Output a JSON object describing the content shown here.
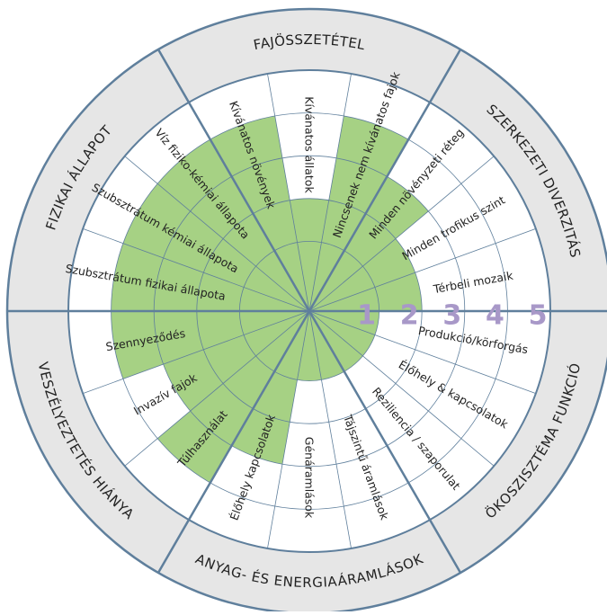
{
  "chart_data": {
    "type": "polar_bar",
    "color": "#a6d184",
    "rlim": [
      0,
      5
    ],
    "rticks": [
      1,
      2,
      3,
      4,
      5
    ],
    "groups": [
      {
        "name": "FAJÖSSZETÉTEL",
        "categories": [
          "Kívánatos növények",
          "Kívánatos állatok",
          "Nincsenek nem kívánatos fajok"
        ],
        "values": [
          4,
          2,
          4
        ]
      },
      {
        "name": "SZERKEZETI DIVERZITÁS",
        "categories": [
          "Minden növényzeti réteg",
          "Minden trofikus szint",
          "Térbeli mozaik"
        ],
        "values": [
          3,
          2,
          2
        ]
      },
      {
        "name": "ÖKOSZISZTÉMA FUNKCIÓ",
        "categories": [
          "Produkció/körforgás",
          "Élőhely & kapcsolatok",
          "Reziliencia / szaporulat"
        ],
        "values": [
          1,
          1,
          1
        ]
      },
      {
        "name": "ANYAG- ÉS ENERGIAÁRAMLÁSOK",
        "categories": [
          "Tájszintű áramlások",
          "Génáramlások",
          "Élőhely kapcsolatok"
        ],
        "values": [
          1,
          1,
          3
        ]
      },
      {
        "name": "VESZÉLYEZTETÉS HIÁNYA",
        "categories": [
          "Túlhasználat",
          "Invazív fajok",
          "Szennyeződés"
        ],
        "values": [
          4,
          3,
          4
        ]
      },
      {
        "name": "FIZIKAI ÁLLAPOT",
        "categories": [
          "Szubsztrátum fizikai állapota",
          "Szubsztrátum kémiai állapota",
          "Víz fiziko-kémiai állapota"
        ],
        "values": [
          4,
          4,
          4
        ]
      }
    ]
  }
}
